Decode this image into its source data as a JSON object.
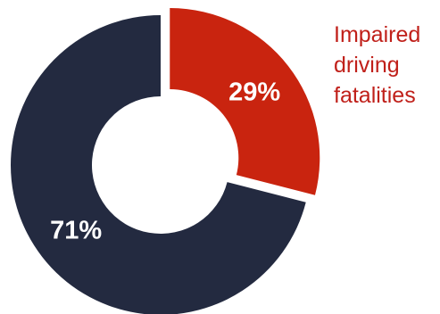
{
  "chart_data": {
    "type": "pie",
    "variant": "donut",
    "categories": [
      "Impaired driving fatalities",
      ""
    ],
    "values": [
      29,
      71
    ],
    "value_labels": [
      "29%",
      "71%"
    ],
    "colors": [
      "#c9240f",
      "#232a40"
    ],
    "exploded": [
      true,
      false
    ],
    "annotation": {
      "lines": [
        "Impaired",
        "driving",
        "fatalities"
      ],
      "color": "#c0201a"
    },
    "legend": "none",
    "title": ""
  }
}
